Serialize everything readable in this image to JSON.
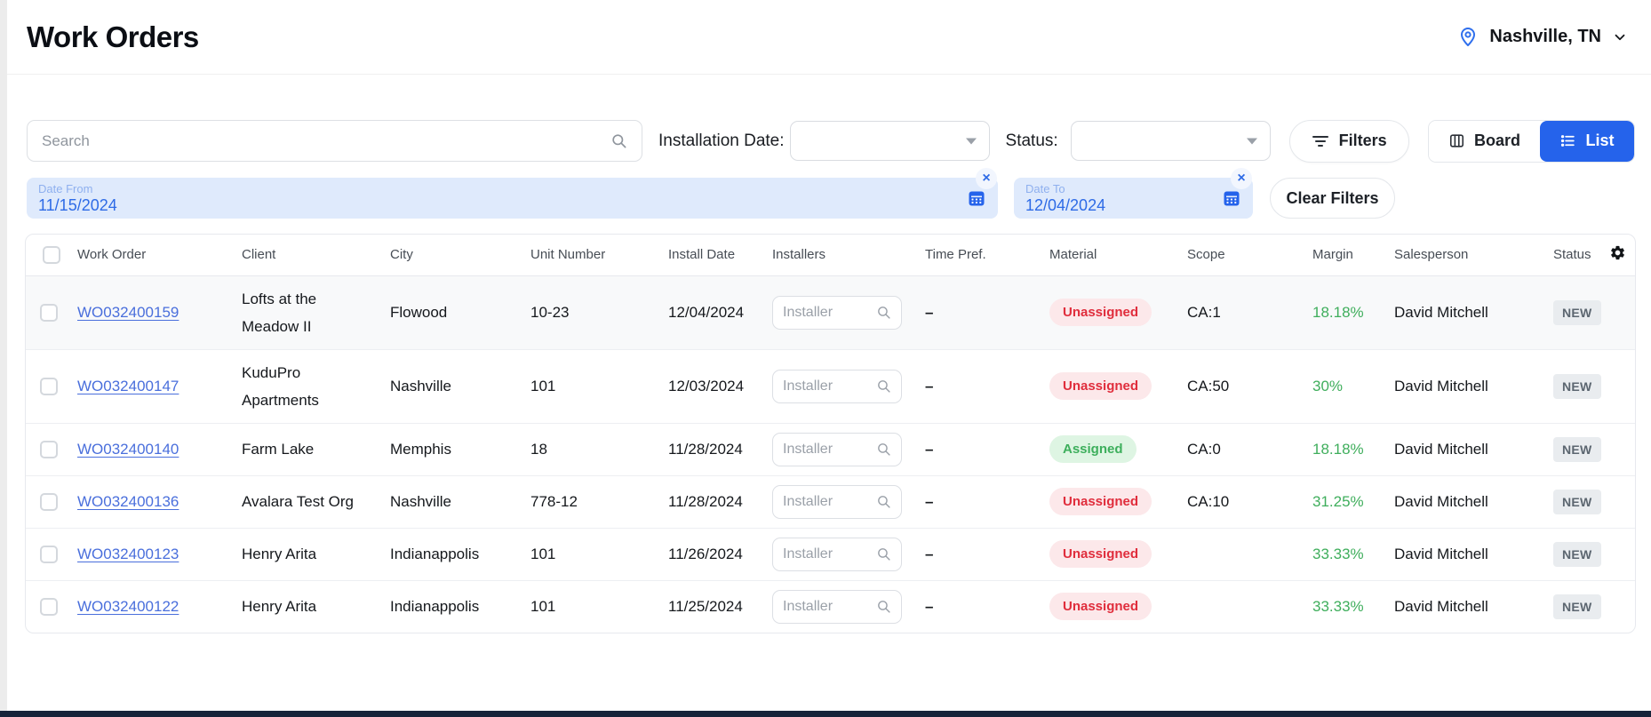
{
  "header": {
    "title": "Work Orders",
    "location": "Nashville, TN"
  },
  "filters": {
    "search_placeholder": "Search",
    "installation_date_label": "Installation Date:",
    "installation_date_value": "",
    "status_label": "Status:",
    "status_value": "",
    "filters_button": "Filters",
    "board_button": "Board",
    "list_button": "List",
    "date_from": {
      "label": "Date From",
      "value": "11/15/2024"
    },
    "date_to": {
      "label": "Date To",
      "value": "12/04/2024"
    },
    "clear_filters_button": "Clear Filters",
    "chip_close_glyph": "×"
  },
  "table": {
    "columns": [
      "Work Order",
      "Client",
      "City",
      "Unit Number",
      "Install Date",
      "Installers",
      "Time Pref.",
      "Material",
      "Scope",
      "Margin",
      "Salesperson",
      "Status"
    ],
    "installer_placeholder": "Installer",
    "rows": [
      {
        "work_order": "WO032400159",
        "client": "Lofts at the Meadow II",
        "city": "Flowood",
        "unit_number": "10-23",
        "install_date": "12/04/2024",
        "time_pref": "–",
        "material": "Unassigned",
        "scope": "CA:1",
        "margin": "18.18%",
        "salesperson": "David Mitchell",
        "status": "NEW",
        "highlighted": true
      },
      {
        "work_order": "WO032400147",
        "client": "KuduPro Apartments",
        "city": "Nashville",
        "unit_number": "101",
        "install_date": "12/03/2024",
        "time_pref": "–",
        "material": "Unassigned",
        "scope": "CA:50",
        "margin": "30%",
        "salesperson": "David Mitchell",
        "status": "NEW",
        "highlighted": false
      },
      {
        "work_order": "WO032400140",
        "client": "Farm Lake",
        "city": "Memphis",
        "unit_number": "18",
        "install_date": "11/28/2024",
        "time_pref": "–",
        "material": "Assigned",
        "scope": "CA:0",
        "margin": "18.18%",
        "salesperson": "David Mitchell",
        "status": "NEW",
        "highlighted": false
      },
      {
        "work_order": "WO032400136",
        "client": "Avalara Test Org",
        "city": "Nashville",
        "unit_number": "778-12",
        "install_date": "11/28/2024",
        "time_pref": "–",
        "material": "Unassigned",
        "scope": "CA:10",
        "margin": "31.25%",
        "salesperson": "David Mitchell",
        "status": "NEW",
        "highlighted": false
      },
      {
        "work_order": "WO032400123",
        "client": "Henry Arita",
        "city": "Indianappolis",
        "unit_number": "101",
        "install_date": "11/26/2024",
        "time_pref": "–",
        "material": "Unassigned",
        "scope": "",
        "margin": "33.33%",
        "salesperson": "David Mitchell",
        "status": "NEW",
        "highlighted": false
      },
      {
        "work_order": "WO032400122",
        "client": "Henry Arita",
        "city": "Indianappolis",
        "unit_number": "101",
        "install_date": "11/25/2024",
        "time_pref": "–",
        "material": "Unassigned",
        "scope": "",
        "margin": "33.33%",
        "salesperson": "David Mitchell",
        "status": "NEW",
        "highlighted": false
      }
    ]
  },
  "colors": {
    "accent": "#2563eb",
    "link": "#4a6fdc",
    "chip_bg": "#dfeafc",
    "chip_text": "#2e6be6",
    "unassigned_bg": "#fce8ea",
    "unassigned_text": "#e02d3c",
    "assigned_bg": "#def5e3",
    "assigned_text": "#3daf5c",
    "margin_green": "#3fae5c",
    "new_badge_bg": "#e9ecef",
    "new_badge_text": "#5c6670"
  }
}
